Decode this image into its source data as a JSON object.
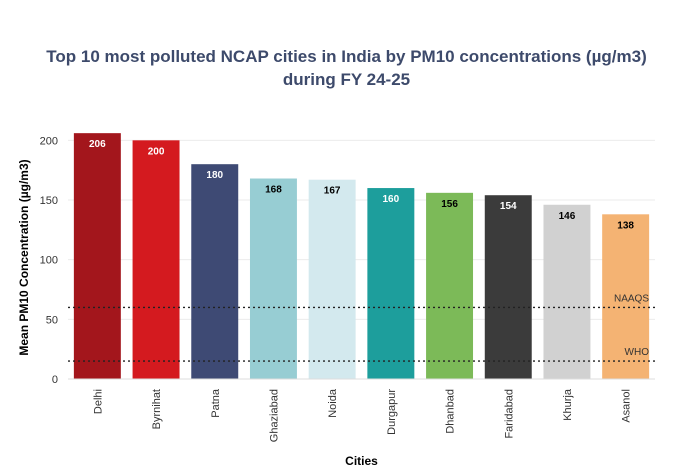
{
  "chart_data": {
    "type": "bar",
    "title_line1": "Top 10 most polluted NCAP cities in India by PM10 concentrations (µg/m3)",
    "title_line2": "during FY 24-25",
    "xlabel": "Cities",
    "ylabel": "Mean PM10 Concentration (µg/m3)",
    "ylim": [
      0,
      212
    ],
    "yticks": [
      0,
      50,
      100,
      150,
      200
    ],
    "grid": true,
    "categories": [
      "Delhi",
      "Byrnihat",
      "Patna",
      "Ghaziabad",
      "Noida",
      "Durgapur",
      "Dhanbad",
      "Faridabad",
      "Khurja",
      "Asanol"
    ],
    "values": [
      206,
      200,
      180,
      168,
      167,
      160,
      156,
      154,
      146,
      138
    ],
    "colors": [
      "#a3161c",
      "#d41a1f",
      "#3e4a74",
      "#97cdd3",
      "#d3e9ee",
      "#1d9e9c",
      "#7cba58",
      "#3b3b3b",
      "#d1d1d1",
      "#f4b373"
    ],
    "label_colors": [
      "#ffffff",
      "#ffffff",
      "#ffffff",
      "#000000",
      "#000000",
      "#ffffff",
      "#000000",
      "#ffffff",
      "#000000",
      "#000000"
    ],
    "reference_lines": [
      {
        "name": "NAAQS",
        "value": 60
      },
      {
        "name": "WHO",
        "value": 15
      }
    ]
  }
}
